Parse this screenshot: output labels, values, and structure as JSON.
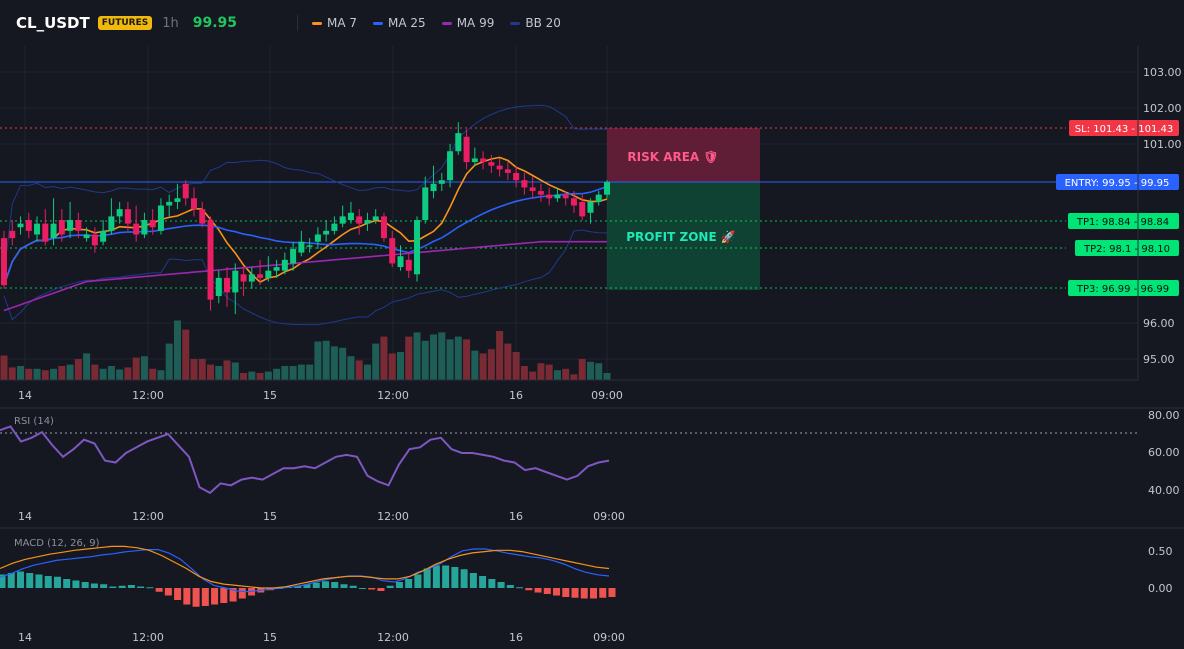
{
  "header": {
    "symbol": "CL_USDT",
    "badge": "FUTURES",
    "timeframe": "1h",
    "last_price": "99.95",
    "indicators": [
      {
        "label": "MA 7",
        "color": "#f7931a"
      },
      {
        "label": "MA 25",
        "color": "#2962ff"
      },
      {
        "label": "MA 99",
        "color": "#9c27b0"
      },
      {
        "label": "BB 20",
        "color": "#1e3a8a"
      }
    ]
  },
  "colors": {
    "up": "#26a69a",
    "up_candle": "#0ecb81",
    "down": "#f6465d",
    "down_candle": "#e91e63",
    "entry": "#2962ff",
    "sl": "#f23645",
    "tp": "#00c853"
  },
  "time_axis": [
    "14",
    "12:00",
    "15",
    "12:00",
    "16",
    "09:00"
  ],
  "price_axis": [
    "103.00",
    "102.00",
    "101.00",
    "96.00",
    "95.00"
  ],
  "rsi_axis": [
    "80.00",
    "60.00",
    "40.00"
  ],
  "macd_axis": [
    "0.50",
    "0.00"
  ],
  "rsi_label": "RSI (14)",
  "macd_label": "MACD (12, 26, 9)",
  "levels": {
    "sl": {
      "label": "SL: 101.43",
      "value": "101.43"
    },
    "entry": {
      "label": "ENTRY: 99.95",
      "value": "99.95"
    },
    "tp1": {
      "label": "TP1: 98.84",
      "value": "98.84"
    },
    "tp2": {
      "label": "TP2: 98.1",
      "value": "98.10"
    },
    "tp3": {
      "label": "TP3: 96.99",
      "value": "96.99"
    }
  },
  "zones": {
    "risk": "RISK AREA 🛡",
    "profit": "PROFIT ZONE 🚀"
  },
  "chart_data": {
    "type": "candlestick",
    "candles": [
      [
        98.4,
        97.1,
        98.6,
        97.0
      ],
      [
        98.6,
        98.4,
        98.9,
        98.2
      ],
      [
        98.7,
        98.8,
        99.0,
        98.5
      ],
      [
        98.9,
        98.6,
        99.1,
        98.4
      ],
      [
        98.5,
        98.8,
        99.0,
        98.3
      ],
      [
        98.8,
        98.3,
        99.2,
        98.2
      ],
      [
        98.4,
        98.8,
        99.5,
        98.2
      ],
      [
        98.9,
        98.5,
        99.2,
        98.3
      ],
      [
        98.6,
        98.9,
        99.4,
        98.4
      ],
      [
        98.9,
        98.6,
        99.1,
        98.4
      ],
      [
        98.4,
        98.5,
        98.7,
        98.3
      ],
      [
        98.5,
        98.2,
        98.7,
        98.0
      ],
      [
        98.3,
        98.6,
        98.9,
        98.2
      ],
      [
        98.6,
        99.0,
        99.5,
        98.5
      ],
      [
        99.0,
        99.2,
        99.4,
        98.8
      ],
      [
        99.2,
        98.8,
        99.4,
        98.6
      ],
      [
        98.8,
        98.5,
        99.3,
        98.3
      ],
      [
        98.5,
        98.9,
        99.1,
        98.4
      ],
      [
        98.9,
        98.7,
        99.2,
        98.5
      ],
      [
        98.6,
        99.3,
        99.5,
        98.5
      ],
      [
        99.3,
        99.4,
        99.6,
        99.0
      ],
      [
        99.4,
        99.5,
        99.9,
        99.2
      ],
      [
        99.9,
        99.5,
        100.0,
        99.3
      ],
      [
        99.5,
        99.2,
        99.8,
        99.0
      ],
      [
        99.2,
        98.8,
        99.4,
        98.7
      ],
      [
        98.9,
        96.7,
        99.0,
        96.4
      ],
      [
        96.8,
        97.3,
        97.5,
        96.6
      ],
      [
        97.3,
        96.9,
        97.6,
        96.5
      ],
      [
        96.9,
        97.5,
        97.7,
        96.3
      ],
      [
        97.4,
        97.2,
        97.6,
        96.8
      ],
      [
        97.2,
        97.4,
        97.6,
        97.0
      ],
      [
        97.4,
        97.3,
        97.8,
        97.1
      ],
      [
        97.3,
        97.5,
        97.9,
        97.2
      ],
      [
        97.5,
        97.6,
        97.8,
        97.3
      ],
      [
        97.5,
        97.8,
        98.0,
        97.4
      ],
      [
        97.7,
        98.1,
        98.3,
        97.5
      ],
      [
        98.0,
        98.3,
        98.6,
        97.9
      ],
      [
        98.2,
        98.2,
        98.4,
        98.0
      ],
      [
        98.3,
        98.5,
        98.7,
        98.1
      ],
      [
        98.5,
        98.6,
        98.9,
        98.3
      ],
      [
        98.6,
        98.8,
        99.0,
        98.5
      ],
      [
        98.8,
        99.0,
        99.3,
        98.7
      ],
      [
        98.9,
        99.1,
        99.4,
        98.8
      ],
      [
        99.0,
        98.8,
        99.2,
        98.5
      ],
      [
        98.8,
        98.9,
        99.1,
        98.6
      ],
      [
        98.9,
        99.0,
        99.2,
        98.8
      ],
      [
        99.0,
        98.4,
        99.1,
        98.3
      ],
      [
        98.4,
        97.7,
        98.6,
        97.6
      ],
      [
        97.6,
        97.9,
        98.2,
        97.5
      ],
      [
        97.8,
        97.5,
        98.0,
        97.3
      ],
      [
        97.4,
        98.9,
        99.0,
        97.2
      ],
      [
        98.9,
        99.8,
        100.1,
        98.8
      ],
      [
        99.7,
        99.9,
        100.4,
        99.5
      ],
      [
        99.9,
        100.0,
        100.2,
        99.7
      ],
      [
        100.0,
        100.8,
        101.0,
        99.8
      ],
      [
        100.8,
        101.3,
        101.6,
        100.7
      ],
      [
        101.2,
        100.5,
        101.4,
        100.3
      ],
      [
        100.5,
        100.6,
        100.9,
        100.4
      ],
      [
        100.6,
        100.5,
        100.8,
        100.3
      ],
      [
        100.5,
        100.4,
        100.7,
        100.2
      ],
      [
        100.4,
        100.3,
        100.6,
        100.1
      ],
      [
        100.3,
        100.2,
        100.5,
        100.0
      ],
      [
        100.2,
        100.0,
        100.4,
        99.8
      ],
      [
        100.0,
        99.8,
        100.2,
        99.6
      ],
      [
        99.8,
        99.7,
        100.1,
        99.5
      ],
      [
        99.7,
        99.6,
        99.9,
        99.4
      ],
      [
        99.6,
        99.5,
        99.8,
        99.3
      ],
      [
        99.5,
        99.6,
        99.8,
        99.4
      ],
      [
        99.6,
        99.5,
        99.7,
        99.3
      ],
      [
        99.5,
        99.3,
        99.7,
        99.1
      ],
      [
        99.4,
        99.0,
        99.6,
        98.9
      ],
      [
        99.1,
        99.4,
        99.5,
        98.8
      ],
      [
        99.4,
        99.6,
        99.7,
        99.3
      ],
      [
        99.6,
        99.95,
        100.0,
        99.5
      ]
    ],
    "volume": [
      0.35,
      0.18,
      0.2,
      0.16,
      0.16,
      0.14,
      0.16,
      0.2,
      0.22,
      0.3,
      0.38,
      0.22,
      0.16,
      0.2,
      0.15,
      0.18,
      0.32,
      0.34,
      0.16,
      0.14,
      0.52,
      0.85,
      0.72,
      0.3,
      0.3,
      0.22,
      0.2,
      0.28,
      0.25,
      0.1,
      0.12,
      0.1,
      0.12,
      0.16,
      0.2,
      0.2,
      0.22,
      0.22,
      0.55,
      0.56,
      0.48,
      0.46,
      0.34,
      0.28,
      0.22,
      0.52,
      0.62,
      0.38,
      0.4,
      0.62,
      0.68,
      0.56,
      0.65,
      0.68,
      0.58,
      0.62,
      0.58,
      0.42,
      0.38,
      0.44,
      0.7,
      0.52,
      0.4,
      0.2,
      0.12,
      0.24,
      0.22,
      0.14,
      0.16,
      0.08,
      0.3,
      0.26,
      0.24,
      0.1
    ],
    "rsi": [
      72,
      74,
      66,
      68,
      71,
      64,
      58,
      62,
      67,
      65,
      56,
      55,
      60,
      63,
      66,
      68,
      70,
      64,
      58,
      42,
      39,
      44,
      43,
      46,
      47,
      46,
      49,
      52,
      52,
      53,
      52,
      55,
      58,
      59,
      58,
      48,
      45,
      43,
      54,
      62,
      63,
      67,
      68,
      62,
      60,
      60,
      59,
      58,
      56,
      55,
      51,
      52,
      50,
      48,
      46,
      48,
      53,
      55,
      56
    ],
    "macd_hist": [
      0.18,
      0.2,
      0.22,
      0.2,
      0.18,
      0.16,
      0.15,
      0.12,
      0.1,
      0.08,
      0.06,
      0.05,
      0.02,
      0.03,
      0.04,
      0.02,
      0.01,
      -0.05,
      -0.1,
      -0.16,
      -0.22,
      -0.25,
      -0.24,
      -0.22,
      -0.2,
      -0.18,
      -0.14,
      -0.1,
      -0.06,
      -0.03,
      0.0,
      0.02,
      0.03,
      0.05,
      0.07,
      0.09,
      0.08,
      0.05,
      0.03,
      0.0,
      -0.02,
      -0.04,
      0.03,
      0.08,
      0.12,
      0.18,
      0.26,
      0.3,
      0.3,
      0.28,
      0.25,
      0.2,
      0.16,
      0.12,
      0.08,
      0.04,
      0.01,
      -0.03,
      -0.06,
      -0.08,
      -0.1,
      -0.12,
      -0.13,
      -0.14,
      -0.14,
      -0.13,
      -0.12
    ],
    "macd_line": [
      0.18,
      0.24,
      0.32,
      0.38,
      0.42,
      0.46,
      0.48,
      0.5,
      0.52,
      0.55,
      0.57,
      0.6,
      0.62,
      0.64,
      0.64,
      0.58,
      0.48,
      0.32,
      0.15,
      0.04,
      0.0,
      -0.05,
      -0.06,
      -0.04,
      -0.02,
      0.0,
      0.02,
      0.05,
      0.1,
      0.14,
      0.18,
      0.2,
      0.2,
      0.18,
      0.12,
      0.1,
      0.16,
      0.26,
      0.32,
      0.4,
      0.52,
      0.62,
      0.65,
      0.65,
      0.62,
      0.58,
      0.55,
      0.52,
      0.5,
      0.46,
      0.4,
      0.32,
      0.26,
      0.22,
      0.2
    ],
    "signal_line": [
      0.3,
      0.38,
      0.44,
      0.48,
      0.52,
      0.55,
      0.58,
      0.6,
      0.62,
      0.64,
      0.64,
      0.62,
      0.58,
      0.5,
      0.4,
      0.3,
      0.18,
      0.1,
      0.06,
      0.04,
      0.02,
      0.0,
      0.0,
      0.02,
      0.06,
      0.1,
      0.14,
      0.16,
      0.18,
      0.18,
      0.16,
      0.14,
      0.14,
      0.18,
      0.26,
      0.36,
      0.44,
      0.5,
      0.54,
      0.56,
      0.58,
      0.58,
      0.56,
      0.52,
      0.48,
      0.44,
      0.4,
      0.36,
      0.32,
      0.3
    ]
  }
}
